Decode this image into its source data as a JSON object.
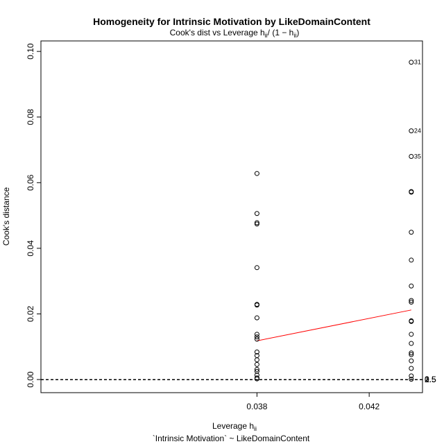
{
  "chart_data": {
    "type": "scatter",
    "title": "Homogeneity for Intrinsic Motivation by LikeDomainContent",
    "subtitle": "Cook's dist vs Leverage  h_ii / (1 − h_ii)",
    "subtitle_prefix": "Cook's dist vs Leverage  h",
    "subtitle_mid": "/ (1 − h",
    "subtitle_suffix": ")",
    "subscript": "ii",
    "xlabel": "Leverage  h",
    "xlabel_prefix": "Leverage  h",
    "xlabel_sub": "ii",
    "model_caption": "`Intrinsic Motivation` ~ LikeDomainContent",
    "ylabel": "Cook's distance",
    "xlim": [
      0.0303,
      0.0439
    ],
    "ylim": [
      -0.004,
      0.1032
    ],
    "x_ticks": [
      0.038,
      0.042
    ],
    "x_tick_labels": [
      "0.038",
      "0.042"
    ],
    "y_ticks": [
      0.0,
      0.02,
      0.04,
      0.06,
      0.08,
      0.1
    ],
    "y_tick_labels": [
      "0.00",
      "0.02",
      "0.04",
      "0.06",
      "0.08",
      "0.10"
    ],
    "contour_levels": [
      0,
      0.5,
      1,
      1.5,
      2,
      2.5
    ],
    "contour_labels": [
      "0",
      "0.5",
      "1",
      "1.5",
      "2",
      "2.5"
    ],
    "contour_slopes": [
      0,
      2.13e-05,
      4.27e-05,
      6.4e-05,
      8.53e-05,
      0.0001067
    ],
    "contour_intercept_x": 0.03088,
    "points": [
      {
        "x": 0.038,
        "y": 0.0628
      },
      {
        "x": 0.038,
        "y": 0.0506
      },
      {
        "x": 0.038,
        "y": 0.0478
      },
      {
        "x": 0.038,
        "y": 0.0474
      },
      {
        "x": 0.038,
        "y": 0.0341
      },
      {
        "x": 0.038,
        "y": 0.0229
      },
      {
        "x": 0.038,
        "y": 0.0227
      },
      {
        "x": 0.038,
        "y": 0.0188
      },
      {
        "x": 0.038,
        "y": 0.0138
      },
      {
        "x": 0.038,
        "y": 0.013
      },
      {
        "x": 0.038,
        "y": 0.0123
      },
      {
        "x": 0.038,
        "y": 0.0084
      },
      {
        "x": 0.038,
        "y": 0.0073
      },
      {
        "x": 0.038,
        "y": 0.006
      },
      {
        "x": 0.038,
        "y": 0.0046
      },
      {
        "x": 0.038,
        "y": 0.0031
      },
      {
        "x": 0.038,
        "y": 0.0025
      },
      {
        "x": 0.038,
        "y": 0.0014
      },
      {
        "x": 0.038,
        "y": 0.0005
      },
      {
        "x": 0.038,
        "y": 0.0002
      },
      {
        "x": 0.0435,
        "y": 0.0967,
        "label": "31"
      },
      {
        "x": 0.0435,
        "y": 0.0758,
        "label": "24"
      },
      {
        "x": 0.0435,
        "y": 0.068,
        "label": "35"
      },
      {
        "x": 0.0435,
        "y": 0.0573
      },
      {
        "x": 0.0435,
        "y": 0.0571
      },
      {
        "x": 0.0435,
        "y": 0.0449
      },
      {
        "x": 0.0435,
        "y": 0.0364
      },
      {
        "x": 0.0435,
        "y": 0.0285
      },
      {
        "x": 0.0435,
        "y": 0.0241
      },
      {
        "x": 0.0435,
        "y": 0.0236
      },
      {
        "x": 0.0435,
        "y": 0.0179
      },
      {
        "x": 0.0435,
        "y": 0.0177
      },
      {
        "x": 0.0435,
        "y": 0.0138
      },
      {
        "x": 0.0435,
        "y": 0.011
      },
      {
        "x": 0.0435,
        "y": 0.0081
      },
      {
        "x": 0.0435,
        "y": 0.0076
      },
      {
        "x": 0.0435,
        "y": 0.0057
      },
      {
        "x": 0.0435,
        "y": 0.0034
      },
      {
        "x": 0.0435,
        "y": 0.0011
      },
      {
        "x": 0.0435,
        "y": 0.0001
      }
    ],
    "smoother": {
      "x": [
        0.038,
        0.0435
      ],
      "y": [
        0.0118,
        0.0212
      ],
      "color": "#ff0000"
    },
    "grid": false,
    "legend": "none"
  }
}
